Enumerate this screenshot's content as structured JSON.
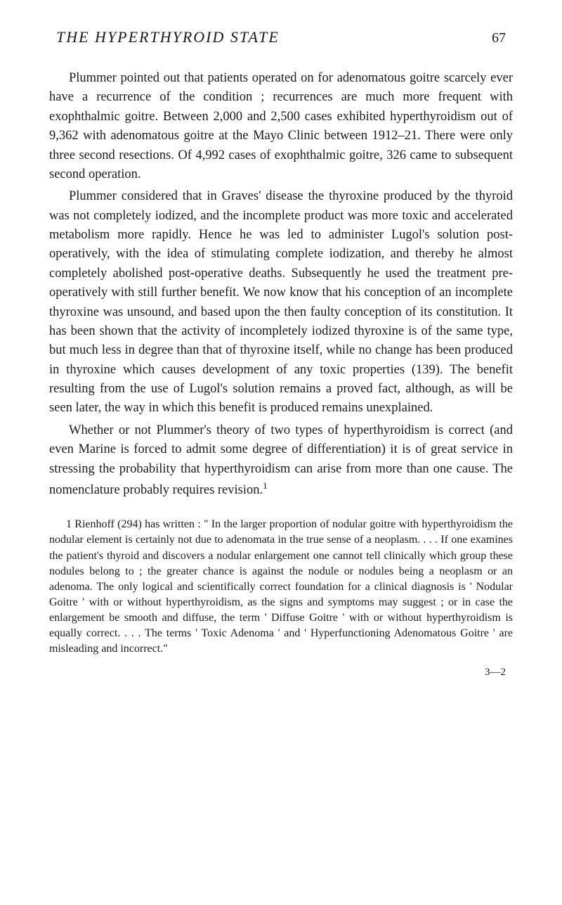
{
  "header": {
    "title": "THE HYPERTHYROID STATE",
    "pageNumber": "67"
  },
  "paragraphs": {
    "p1": "Plummer pointed out that patients operated on for adeno­matous goitre scarcely ever have a recurrence of the condition ; recurrences are much more frequent with exophthalmic goitre. Between 2,000 and 2,500 cases exhibited hyperthyroidism out of 9,362 with adenomatous goitre at the Mayo Clinic between 1912–21. There were only three second resections. Of 4,992 cases of exophthalmic goitre, 326 came to subsequent second operation.",
    "p2": "Plummer considered that in Graves' disease the thyroxine produced by the thyroid was not completely iodized, and the incomplete product was more toxic and accelerated metabolism more rapidly. Hence he was led to administer Lugol's solution post-operatively, with the idea of stimulating complete iodiza­tion, and thereby he almost completely abolished post-operative deaths. Subsequently he used the treatment pre-operatively with still further benefit. We now know that his conception of an incomplete thyroxine was unsound, and based upon the then faulty conception of its constitution. It has been shown that the activity of incompletely iodized thyroxine is of the same type, but much less in degree than that of thyroxine itself, while no change has been produced in thyroxine which causes development of any toxic properties (139). The benefit resulting from the use of Lugol's solution remains a proved fact, although, as will be seen later, the way in which this benefit is produced remains unexplained.",
    "p3_part1": "Whether or not Plummer's theory of two types of hyper­thyroidism is correct (and even Marine is forced to admit some degree of differentiation) it is of great service in stressing the probability that hyperthyroidism can arise from more than one cause. The nomenclature probably requires revision.",
    "p3_sup": "1"
  },
  "footnote": {
    "text": "1 Rienhoff (294) has written : \" In the larger proportion of nodular goitre with hyperthyroidism the nodular element is certainly not due to adenomata in the true sense of a neoplasm. . . . If one examines the patient's thyroid and discovers a nodular enlargement one cannot tell clinically which group these nodules belong to ; the greater chance is against the nodule or nodules being a neoplasm or an adenoma. The only logical and scientifically correct foundation for a clinical diagnosis is ' Nodular Goitre ' with or without hyperthyroidism, as the signs and symptoms may suggest ; or in case the enlargement be smooth and diffuse, the term ' Diffuse Goitre ' with or without hyperthyroidism is equally correct. . . . The terms ' Toxic Adenoma ' and ' Hyperfunc­tioning Adenomatous Goitre ' are misleading and incorrect.\""
  },
  "signatureMark": "3—2",
  "styling": {
    "bodyBackground": "#ffffff",
    "textColor": "#1a1a1a",
    "bodyWidth": 800,
    "bodyHeight": 1287,
    "headerTitleFontSize": 22,
    "pageNumberFontSize": 20,
    "paragraphFontSize": 18.5,
    "paragraphLineHeight": 1.48,
    "footnoteFontSize": 16,
    "footnoteLineHeight": 1.38,
    "signatureFontSize": 15,
    "textIndent": 28
  }
}
